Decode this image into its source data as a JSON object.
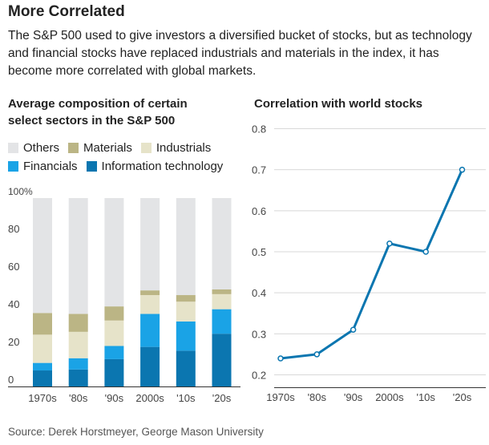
{
  "header": {
    "title": "More Correlated",
    "subtitle": "The S&P 500 used to give investors a diversified bucket of stocks, but as technology and financial stocks have replaced industrials and materials in the index, it has become more correlated with global markets."
  },
  "footer": {
    "source": "Source: Derek Horstmeyer, George Mason University"
  },
  "chart_data": [
    {
      "type": "bar",
      "stacked": true,
      "title_line1": "Average composition of certain",
      "title_line2": "select sectors in the S&P 500",
      "categories": [
        "1970s",
        "'80s",
        "'90s",
        "2000s",
        "'10s",
        "'20s"
      ],
      "y_tick_labels": [
        "0",
        "20",
        "40",
        "60",
        "80",
        "100%"
      ],
      "y_ticks": [
        0,
        20,
        40,
        60,
        80,
        100
      ],
      "ylim": [
        0,
        100
      ],
      "grid": false,
      "legend_position": "top",
      "series": [
        {
          "name": "Information technology",
          "color": "#0b76b0",
          "values": [
            8.5,
            9,
            14.5,
            21,
            19,
            28
          ]
        },
        {
          "name": "Financials",
          "color": "#1aa3e6",
          "values": [
            4,
            6,
            7,
            17.5,
            15.5,
            13
          ]
        },
        {
          "name": "Industrials",
          "color": "#e6e3c9",
          "values": [
            15,
            14,
            13.5,
            10,
            10.5,
            8
          ]
        },
        {
          "name": "Materials",
          "color": "#bbb585",
          "values": [
            11.5,
            9.5,
            7.5,
            2.5,
            3.5,
            2.5
          ]
        },
        {
          "name": "Others",
          "color": "#e3e4e6",
          "values": [
            61,
            61.5,
            57.5,
            49,
            51.5,
            48.5
          ]
        }
      ],
      "legend": [
        [
          {
            "name": "Others",
            "color": "#e3e4e6"
          },
          {
            "name": "Materials",
            "color": "#bbb585"
          },
          {
            "name": "Industrials",
            "color": "#e6e3c9"
          }
        ],
        [
          {
            "name": "Financials",
            "color": "#1aa3e6"
          },
          {
            "name": "Information technology",
            "color": "#0b76b0"
          }
        ]
      ]
    },
    {
      "type": "line",
      "title": "Correlation with world stocks",
      "categories": [
        "1970s",
        "'80s",
        "'90s",
        "2000s",
        "'10s",
        "'20s"
      ],
      "y_tick_labels": [
        "0.2",
        "0.3",
        "0.4",
        "0.5",
        "0.6",
        "0.7",
        "0.8"
      ],
      "y_ticks": [
        0.2,
        0.3,
        0.4,
        0.5,
        0.6,
        0.7,
        0.8
      ],
      "ylim": [
        0.2,
        0.8
      ],
      "grid": true,
      "color": "#0b76b0",
      "values": [
        0.24,
        0.25,
        0.31,
        0.52,
        0.5,
        0.7
      ]
    }
  ]
}
